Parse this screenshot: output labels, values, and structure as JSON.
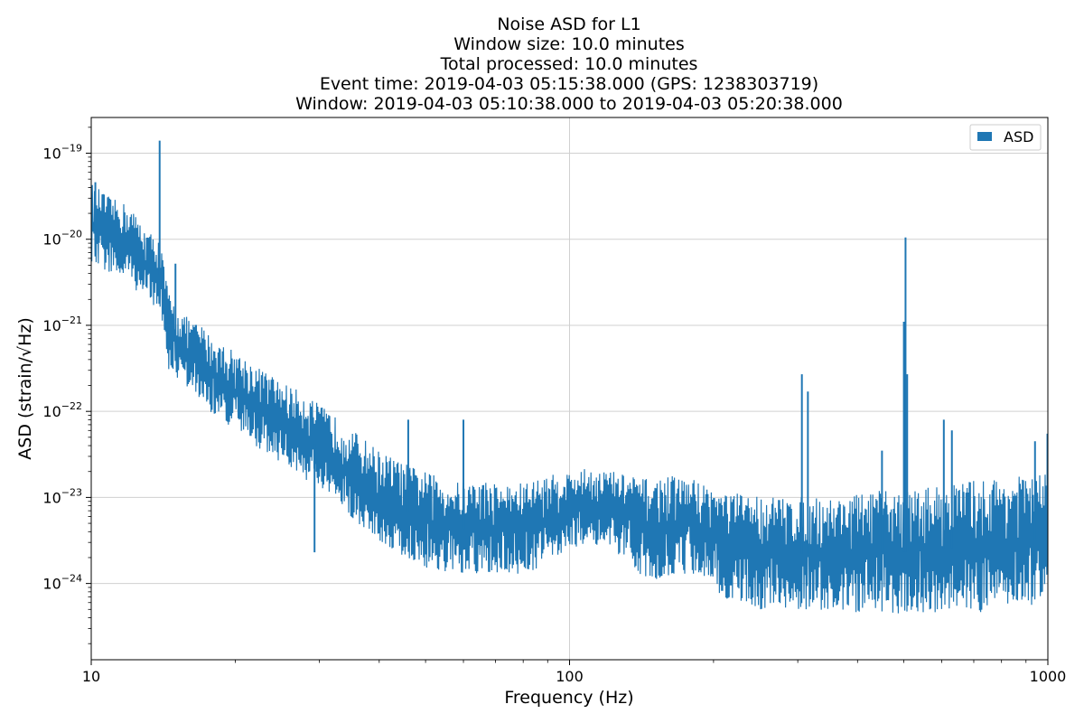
{
  "chart_data": {
    "type": "line",
    "title_lines": [
      "Noise ASD for L1",
      "Window size: 10.0 minutes",
      "Total processed: 10.0 minutes",
      "Event time: 2019-04-03 05:15:38.000 (GPS: 1238303719)",
      "Window: 2019-04-03 05:10:38.000 to 2019-04-03 05:20:38.000"
    ],
    "xlabel": "Frequency (Hz)",
    "ylabel": "ASD (strain/√Hz)",
    "xscale": "log",
    "yscale": "log",
    "xlim": [
      10,
      1000
    ],
    "ylim": [
      1.3e-25,
      2.6e-19
    ],
    "x_ticks": [
      {
        "value": 10,
        "label": "10"
      },
      {
        "value": 100,
        "label": "100"
      },
      {
        "value": 1000,
        "label": "1000"
      }
    ],
    "y_ticks": [
      {
        "value": 1e-24,
        "base": "10",
        "exp": "−24"
      },
      {
        "value": 1e-23,
        "base": "10",
        "exp": "−23"
      },
      {
        "value": 1e-22,
        "base": "10",
        "exp": "−22"
      },
      {
        "value": 1e-21,
        "base": "10",
        "exp": "−21"
      },
      {
        "value": 1e-20,
        "base": "10",
        "exp": "−20"
      },
      {
        "value": 1e-19,
        "base": "10",
        "exp": "−19"
      }
    ],
    "grid": true,
    "legend": {
      "placement": "top-right",
      "entries": [
        {
          "label": "ASD",
          "color": "#1f77b4"
        }
      ]
    },
    "series": [
      {
        "name": "ASD",
        "color": "#1f77b4",
        "envelope": {
          "x": [
            10,
            11,
            12,
            13,
            13.9,
            14.5,
            15,
            16,
            17,
            18,
            20,
            22,
            25,
            28,
            30,
            33,
            36,
            40,
            45,
            50,
            55,
            60,
            65,
            70,
            75,
            80,
            90,
            100,
            110,
            120,
            130,
            140,
            150,
            160,
            180,
            200,
            210,
            230,
            250,
            280,
            300,
            350,
            400,
            450,
            500,
            550,
            600,
            700,
            800,
            900,
            1000
          ],
          "upper": [
            4.5e-20,
            3e-20,
            2.5e-20,
            1.3e-20,
            1e-20,
            2.5e-21,
            1.6e-21,
            1.2e-21,
            1e-21,
            7e-22,
            5e-22,
            3.5e-22,
            2.2e-22,
            1.6e-22,
            1.2e-22,
            8e-23,
            5.5e-23,
            3.5e-23,
            2.5e-23,
            2e-23,
            1.6e-23,
            1.5e-23,
            1.6e-23,
            1.5e-23,
            1.4e-23,
            1.5e-23,
            1.8e-23,
            2e-23,
            2.2e-23,
            2.1e-23,
            1.9e-23,
            1.7e-23,
            1.6e-23,
            1.8e-23,
            1.7e-23,
            1.3e-23,
            1.2e-23,
            1.1e-23,
            1.1e-23,
            1e-23,
            1e-23,
            1e-23,
            1.1e-23,
            1.2e-23,
            1.2e-23,
            1.3e-23,
            1.4e-23,
            1.6e-23,
            1.7e-23,
            1.8e-23,
            1.9e-23
          ],
          "lower": [
            5e-21,
            4e-21,
            3e-21,
            2e-21,
            1.5e-21,
            3e-22,
            2.5e-22,
            1.8e-22,
            1.3e-22,
            9e-23,
            6e-23,
            4e-23,
            2.5e-23,
            1.6e-23,
            1.2e-23,
            8e-24,
            5e-24,
            3e-24,
            2e-24,
            1.5e-24,
            1.3e-24,
            1.2e-24,
            1.2e-24,
            1.3e-24,
            1.3e-24,
            1.2e-24,
            1.8e-24,
            2.5e-24,
            3e-24,
            2.5e-24,
            1.8e-24,
            1.3e-24,
            1.1e-24,
            1.2e-24,
            1.3e-24,
            1.1e-24,
            6e-25,
            6e-25,
            5e-25,
            4.5e-25,
            5e-25,
            4.5e-25,
            4.5e-25,
            4.5e-25,
            4.5e-25,
            4.5e-25,
            4.5e-25,
            4.5e-25,
            5e-25,
            5.5e-25,
            6e-25
          ]
        },
        "spikes": [
          {
            "x": 10.2,
            "y": 4.6e-20
          },
          {
            "x": 13.9,
            "y": 1.4e-19
          },
          {
            "x": 15.0,
            "y": 5.2e-21
          },
          {
            "x": 29.3,
            "y": 2.3e-24
          },
          {
            "x": 46.0,
            "y": 8e-23
          },
          {
            "x": 60.0,
            "y": 8e-23
          },
          {
            "x": 306.0,
            "y": 2.7e-22
          },
          {
            "x": 315.0,
            "y": 1.7e-22
          },
          {
            "x": 450.0,
            "y": 3.5e-23
          },
          {
            "x": 500.0,
            "y": 1.1e-21
          },
          {
            "x": 504.0,
            "y": 1.05e-20
          },
          {
            "x": 508.0,
            "y": 2.7e-22
          },
          {
            "x": 606.0,
            "y": 8e-23
          },
          {
            "x": 630.0,
            "y": 6e-23
          },
          {
            "x": 940.0,
            "y": 4.5e-23
          },
          {
            "x": 998.0,
            "y": 5.5e-23
          }
        ]
      }
    ]
  }
}
